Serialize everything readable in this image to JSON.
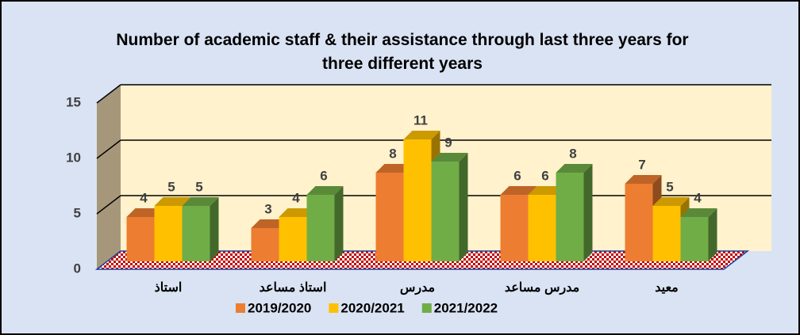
{
  "chart_data": {
    "type": "bar3d",
    "title": "Number of academic staff & their assistance through last three years for three  different years",
    "categories": [
      "استاذ",
      "استاذ مساعد",
      "مدرس",
      "مدرس مساعد",
      "معيد"
    ],
    "series": [
      {
        "name": "2019/2020",
        "color": "#ed7d31",
        "values": [
          4,
          3,
          8,
          6,
          7
        ]
      },
      {
        "name": "2020/2021",
        "color": "#ffc000",
        "values": [
          5,
          4,
          11,
          6,
          5
        ]
      },
      {
        "name": "2021/2022",
        "color": "#70ad47",
        "values": [
          5,
          6,
          9,
          8,
          4
        ]
      }
    ],
    "ylim": [
      0,
      15
    ],
    "yticks": [
      0,
      5,
      10,
      15
    ],
    "grid": true
  }
}
